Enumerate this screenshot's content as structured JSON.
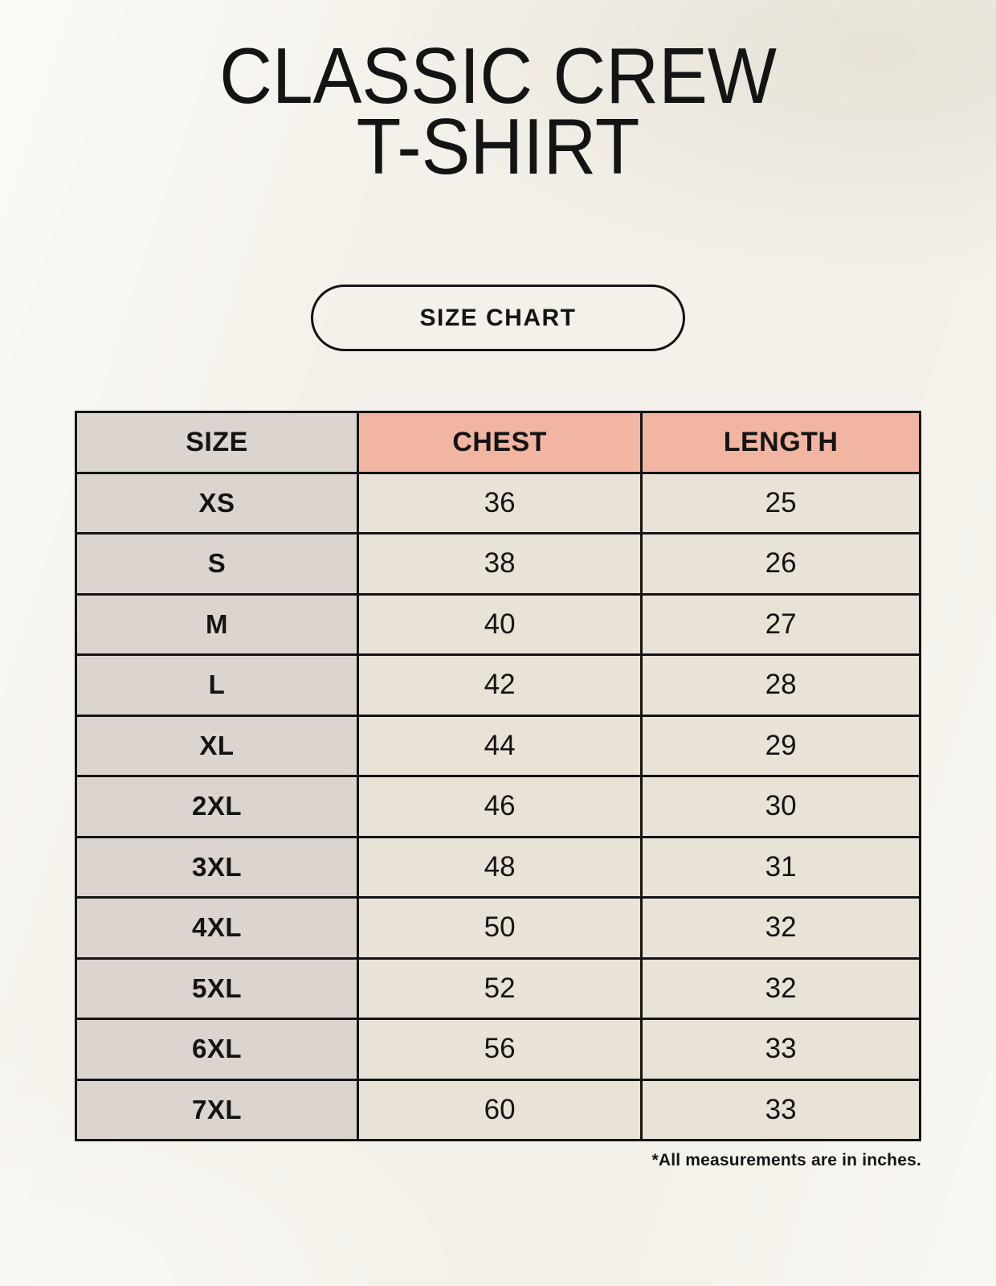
{
  "header": {
    "title_line1": "CLASSIC CREW",
    "title_line2": "T-SHIRT",
    "size_chart_button_label": "SIZE CHART"
  },
  "table": {
    "columns": [
      "SIZE",
      "CHEST",
      "LENGTH"
    ],
    "rows": [
      [
        "XS",
        "36",
        "25"
      ],
      [
        "S",
        "38",
        "26"
      ],
      [
        "M",
        "40",
        "27"
      ],
      [
        "L",
        "42",
        "28"
      ],
      [
        "XL",
        "44",
        "29"
      ],
      [
        "2XL",
        "46",
        "30"
      ],
      [
        "3XL",
        "48",
        "31"
      ],
      [
        "4XL",
        "50",
        "32"
      ],
      [
        "5XL",
        "52",
        "32"
      ],
      [
        "6XL",
        "56",
        "33"
      ],
      [
        "7XL",
        "60",
        "33"
      ]
    ]
  },
  "footnote": "*All measurements are in inches.",
  "colors": {
    "background_cream": "#f4f1ea",
    "accent_salmon": "#f1b5a1",
    "column_gray": "#dcd5cf",
    "cell_cream": "#e9e2d7",
    "text_black": "#141414"
  }
}
